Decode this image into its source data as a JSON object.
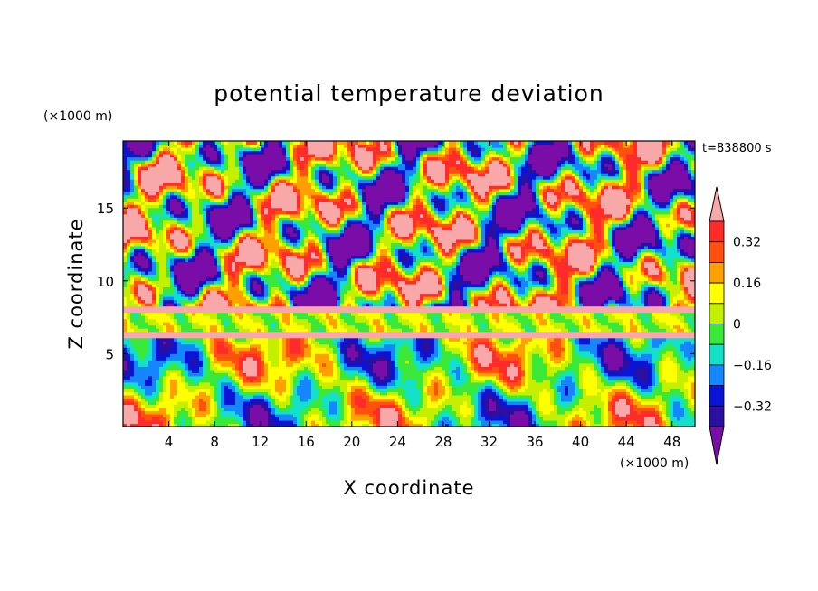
{
  "chart_data": {
    "type": "heatmap",
    "title": "potential temperature deviation",
    "xlabel": "X coordinate",
    "ylabel": "Z coordinate",
    "x_unit": "(×1000 m)",
    "y_unit": "(×1000 m)",
    "time_label": "t=838800 s",
    "xlim": [
      0,
      50
    ],
    "ylim": [
      0,
      19.6
    ],
    "x_ticks": [
      4,
      8,
      12,
      16,
      20,
      24,
      28,
      32,
      36,
      40,
      44,
      48
    ],
    "x_tick_labels": [
      "4",
      "8",
      "12",
      "16",
      "20",
      "24",
      "28",
      "32",
      "36",
      "40",
      "44",
      "48"
    ],
    "y_ticks": [
      5,
      10,
      15
    ],
    "y_tick_labels": [
      "5",
      "10",
      "15"
    ],
    "colorbar": {
      "levels": [
        -0.4,
        -0.32,
        -0.24,
        -0.16,
        -0.08,
        0,
        0.08,
        0.16,
        0.24,
        0.32,
        0.4
      ],
      "tick_values": [
        -0.32,
        -0.16,
        0,
        0.16,
        0.32
      ],
      "tick_labels": [
        "−0.32",
        "−0.16",
        "0",
        "0.16",
        "0.32"
      ],
      "colors": [
        "#7a0ca8",
        "#2a0fa0",
        "#0a14d6",
        "#1686ff",
        "#12e0c8",
        "#3ae83a",
        "#c4f000",
        "#ffff00",
        "#ffa000",
        "#ff5010",
        "#ff2a2a",
        "#f8a8a8"
      ],
      "extend": "both"
    },
    "grid": false
  }
}
